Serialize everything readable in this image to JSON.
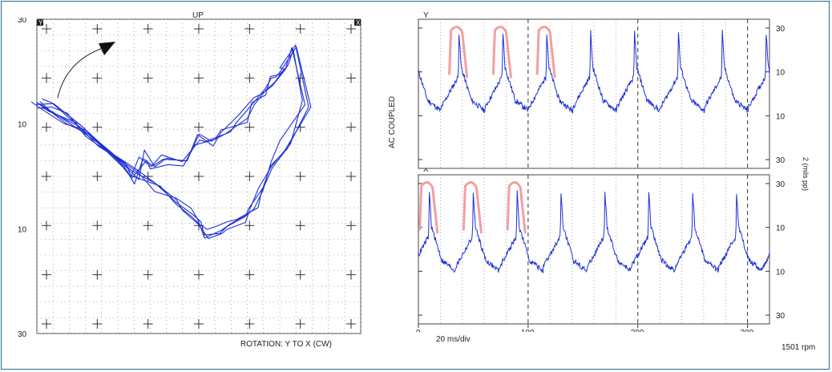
{
  "orbit": {
    "title": "UP",
    "corner_left": "Y",
    "corner_right": "X",
    "rotation_label": "ROTATION: Y TO X (CW)",
    "axis_labels": [
      "30",
      "10",
      "10",
      "30"
    ]
  },
  "timebase": {
    "vertical_label": "AC COUPLED",
    "right_label": "2 (mils pp)",
    "top_label": "Y",
    "bottom_label": "X",
    "scale_label": "20 ms/div",
    "rpm_label": "1501 rpm",
    "x_ticks": [
      "0",
      "100",
      "200",
      "300"
    ],
    "y_ticks": [
      "30",
      "10",
      "10",
      "30"
    ]
  },
  "colors": {
    "border": "#1f6f8b",
    "trace": "#1d2fd6",
    "highlight": "#f2a0a0",
    "grid": "#444444"
  },
  "chart_data": [
    {
      "type": "scatter",
      "name_hint": "orbit",
      "title": "UP",
      "xlim": [
        -30,
        30
      ],
      "ylim": [
        -30,
        30
      ],
      "yticks": [
        30,
        10,
        -10,
        -30
      ],
      "ytick_labels": [
        "30",
        "10",
        "10",
        "30"
      ],
      "x": [
        -30,
        -27,
        -22,
        -18,
        -14,
        -12,
        -10,
        -9,
        -6,
        -3,
        0,
        2,
        5,
        8,
        10,
        12,
        14,
        15,
        16,
        18,
        20,
        16,
        14,
        12,
        10,
        8,
        6,
        4,
        2,
        0,
        -2,
        -4,
        -8,
        -12,
        -16,
        -20,
        -24,
        -28,
        -30
      ],
      "y": [
        14,
        13,
        10,
        6,
        2,
        -1,
        4,
        2,
        3,
        2,
        7,
        6,
        9,
        11,
        14,
        16,
        18,
        20,
        21,
        24,
        14,
        6,
        2,
        -2,
        -6,
        -8,
        -9,
        -10,
        -11,
        -9,
        -7,
        -5,
        -2,
        1,
        5,
        8,
        11,
        13,
        14
      ],
      "grid": true
    },
    {
      "type": "line",
      "name_hint": "Y",
      "xlabel": "",
      "xlim": [
        0,
        320
      ],
      "ylim": [
        -34,
        34
      ],
      "xticks": [
        0,
        100,
        200,
        300
      ],
      "yticks": [
        30,
        10,
        -10,
        -30
      ],
      "ytick_labels": [
        "30",
        "10",
        "10",
        "30"
      ],
      "period_ms": 40,
      "first_peak_ms": 37,
      "peak": 28,
      "trough": -8,
      "right_ticks": [
        "30",
        "10",
        "10",
        "30"
      ]
    },
    {
      "type": "line",
      "name_hint": "X",
      "xlim": [
        0,
        320
      ],
      "ylim": [
        -34,
        34
      ],
      "xticks": [
        0,
        100,
        200,
        300
      ],
      "xtick_labels": [
        "0",
        "100",
        "200",
        "300"
      ],
      "yticks": [
        30,
        10,
        -10,
        -30
      ],
      "ytick_labels": [
        "30",
        "10",
        "10",
        "30"
      ],
      "period_ms": 40,
      "first_peak_ms": 10,
      "peak": 26,
      "trough": -10,
      "right_ticks": [
        "30",
        "10",
        "10",
        "30"
      ]
    }
  ]
}
